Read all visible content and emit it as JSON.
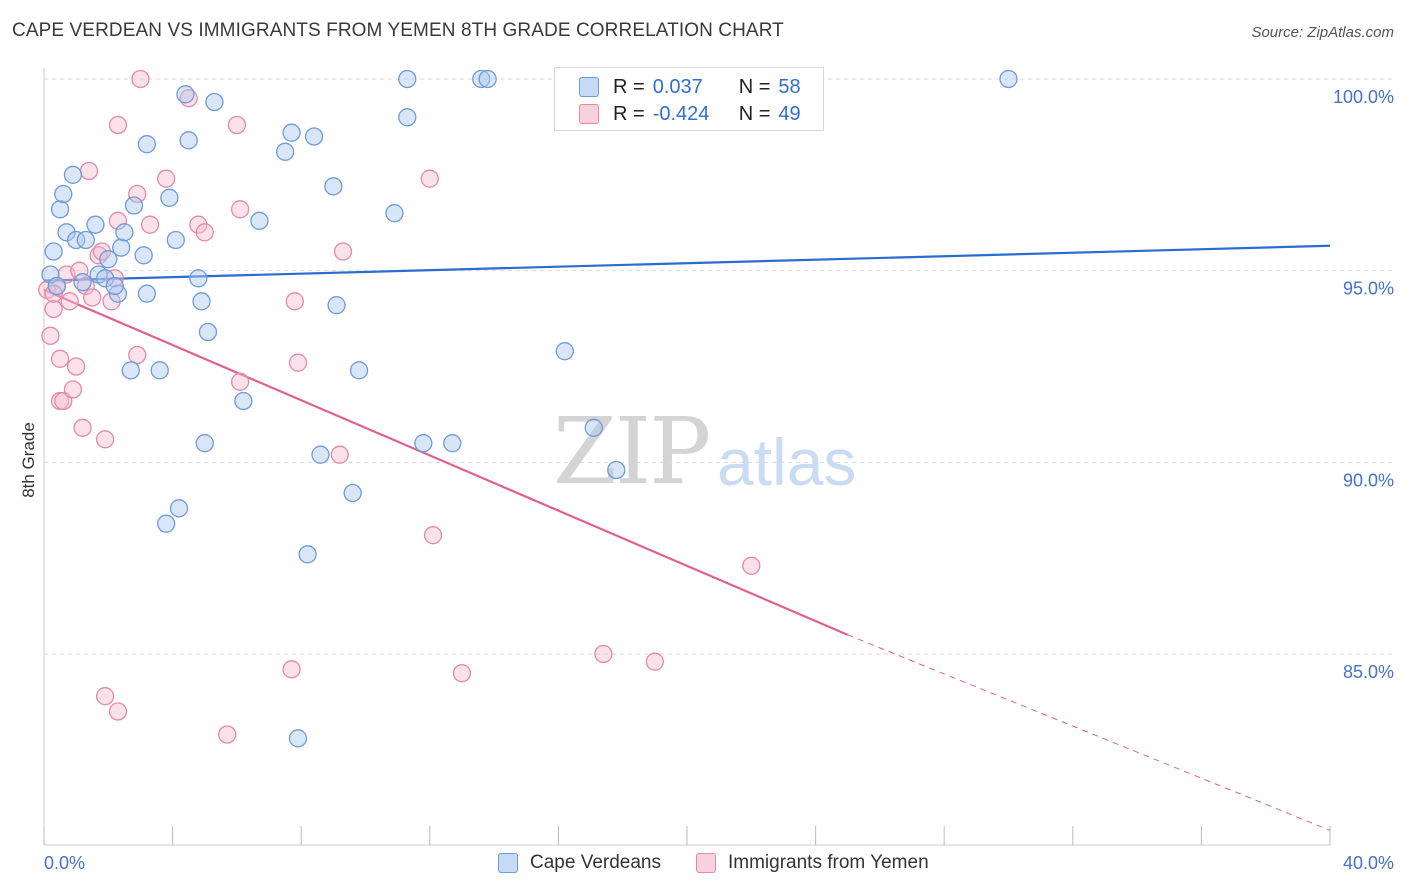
{
  "title": "CAPE VERDEAN VS IMMIGRANTS FROM YEMEN 8TH GRADE CORRELATION CHART",
  "source": "Source: ZipAtlas.com",
  "watermark": {
    "left": "ZIP",
    "right": "atlas"
  },
  "legend": {
    "rows": [
      {
        "r_label": "R =",
        "r_value": "0.037",
        "n_label": "N =",
        "n_value": "58"
      },
      {
        "r_label": "R =",
        "r_value": "-0.424",
        "n_label": "N =",
        "n_value": "49"
      }
    ]
  },
  "bottom_legend": [
    "Cape Verdeans",
    "Immigrants from Yemen"
  ],
  "colors": {
    "blue_fill": "#aac8f0",
    "blue_stroke": "#6f9bd8",
    "blue_line": "#2a6dcf",
    "pink_fill": "#f6bcd0",
    "pink_stroke": "#e48aa8",
    "pink_line": "#e06090",
    "tick_text": "#4472c4",
    "grid": "#d9d9d9"
  },
  "chart_data": {
    "type": "scatter",
    "title": "CAPE VERDEAN VS IMMIGRANTS FROM YEMEN 8TH GRADE CORRELATION CHART",
    "xlabel": "",
    "ylabel": "8th Grade",
    "xlim": [
      0,
      40
    ],
    "ylim": [
      80.5,
      100.2
    ],
    "x_ticks": [
      0,
      4,
      8,
      12,
      16,
      20,
      24,
      28,
      32,
      36,
      40
    ],
    "x_tick_labels": {
      "0": "0.0%",
      "40": "40.0%"
    },
    "y_ticks": [
      85,
      90,
      95,
      100
    ],
    "y_tick_labels": [
      "85.0%",
      "90.0%",
      "95.0%",
      "100.0%"
    ],
    "grid": true,
    "series": [
      {
        "name": "Cape Verdeans",
        "color": "#6f9bd8",
        "points": [
          [
            0.2,
            94.9
          ],
          [
            0.3,
            95.5
          ],
          [
            0.5,
            96.6
          ],
          [
            0.6,
            97.0
          ],
          [
            0.7,
            96.0
          ],
          [
            0.9,
            97.5
          ],
          [
            1.0,
            95.8
          ],
          [
            1.3,
            95.8
          ],
          [
            1.6,
            96.2
          ],
          [
            1.7,
            94.9
          ],
          [
            1.9,
            94.8
          ],
          [
            2.0,
            95.3
          ],
          [
            2.3,
            94.4
          ],
          [
            2.4,
            95.6
          ],
          [
            2.5,
            96.0
          ],
          [
            2.7,
            92.4
          ],
          [
            2.8,
            96.7
          ],
          [
            3.1,
            95.4
          ],
          [
            3.2,
            94.4
          ],
          [
            3.2,
            98.3
          ],
          [
            3.6,
            92.4
          ],
          [
            3.8,
            88.4
          ],
          [
            3.9,
            96.9
          ],
          [
            4.1,
            95.8
          ],
          [
            4.2,
            88.8
          ],
          [
            4.4,
            99.6
          ],
          [
            4.5,
            98.4
          ],
          [
            4.8,
            94.8
          ],
          [
            4.9,
            94.2
          ],
          [
            5.0,
            90.5
          ],
          [
            5.1,
            93.4
          ],
          [
            5.3,
            99.4
          ],
          [
            6.2,
            91.6
          ],
          [
            6.7,
            96.3
          ],
          [
            7.5,
            98.1
          ],
          [
            7.7,
            98.6
          ],
          [
            7.9,
            82.8
          ],
          [
            8.2,
            87.6
          ],
          [
            8.4,
            98.5
          ],
          [
            8.6,
            90.2
          ],
          [
            9.0,
            97.2
          ],
          [
            9.1,
            94.1
          ],
          [
            9.6,
            89.2
          ],
          [
            9.8,
            92.4
          ],
          [
            10.9,
            96.5
          ],
          [
            11.3,
            99.0
          ],
          [
            11.3,
            100.0
          ],
          [
            11.8,
            90.5
          ],
          [
            12.7,
            90.5
          ],
          [
            13.6,
            100.0
          ],
          [
            13.8,
            100.0
          ],
          [
            16.2,
            92.9
          ],
          [
            17.1,
            90.9
          ],
          [
            17.8,
            89.8
          ],
          [
            30.0,
            100.0
          ],
          [
            0.4,
            94.6
          ],
          [
            1.2,
            94.7
          ],
          [
            2.2,
            94.6
          ]
        ]
      },
      {
        "name": "Immigrants from Yemen",
        "color": "#e48aa8",
        "points": [
          [
            0.1,
            94.5
          ],
          [
            0.2,
            93.3
          ],
          [
            0.3,
            94.0
          ],
          [
            0.4,
            94.6
          ],
          [
            0.5,
            92.7
          ],
          [
            0.5,
            91.6
          ],
          [
            0.6,
            91.6
          ],
          [
            0.7,
            94.9
          ],
          [
            0.8,
            94.2
          ],
          [
            0.9,
            91.9
          ],
          [
            1.0,
            92.5
          ],
          [
            1.1,
            95.0
          ],
          [
            1.2,
            90.9
          ],
          [
            1.3,
            94.6
          ],
          [
            1.4,
            97.6
          ],
          [
            1.5,
            94.3
          ],
          [
            1.7,
            95.4
          ],
          [
            1.8,
            95.5
          ],
          [
            1.9,
            83.9
          ],
          [
            1.9,
            90.6
          ],
          [
            2.1,
            94.2
          ],
          [
            2.2,
            94.8
          ],
          [
            2.3,
            83.5
          ],
          [
            2.3,
            96.3
          ],
          [
            2.3,
            98.8
          ],
          [
            2.9,
            97.0
          ],
          [
            2.9,
            92.8
          ],
          [
            3.0,
            100.0
          ],
          [
            3.3,
            96.2
          ],
          [
            3.8,
            97.4
          ],
          [
            4.5,
            99.5
          ],
          [
            4.8,
            96.2
          ],
          [
            5.0,
            96.0
          ],
          [
            5.7,
            82.9
          ],
          [
            6.0,
            98.8
          ],
          [
            6.1,
            92.1
          ],
          [
            6.1,
            96.6
          ],
          [
            7.7,
            84.6
          ],
          [
            7.8,
            94.2
          ],
          [
            7.9,
            92.6
          ],
          [
            9.2,
            90.2
          ],
          [
            9.3,
            95.5
          ],
          [
            12.0,
            97.4
          ],
          [
            12.1,
            88.1
          ],
          [
            13.0,
            84.5
          ],
          [
            17.4,
            85.0
          ],
          [
            19.0,
            84.8
          ],
          [
            22.0,
            87.3
          ],
          [
            0.3,
            94.4
          ]
        ]
      }
    ],
    "trendlines": [
      {
        "series": "Cape Verdeans",
        "x": [
          0,
          40
        ],
        "y": [
          94.74,
          95.65
        ],
        "style": "solid"
      },
      {
        "series": "Immigrants from Yemen",
        "x": [
          0,
          25
        ],
        "y": [
          94.5,
          85.5
        ],
        "style": "solid"
      },
      {
        "series": "Immigrants from Yemen",
        "x": [
          25,
          40
        ],
        "y": [
          85.5,
          80.4
        ],
        "style": "dashed"
      }
    ]
  }
}
